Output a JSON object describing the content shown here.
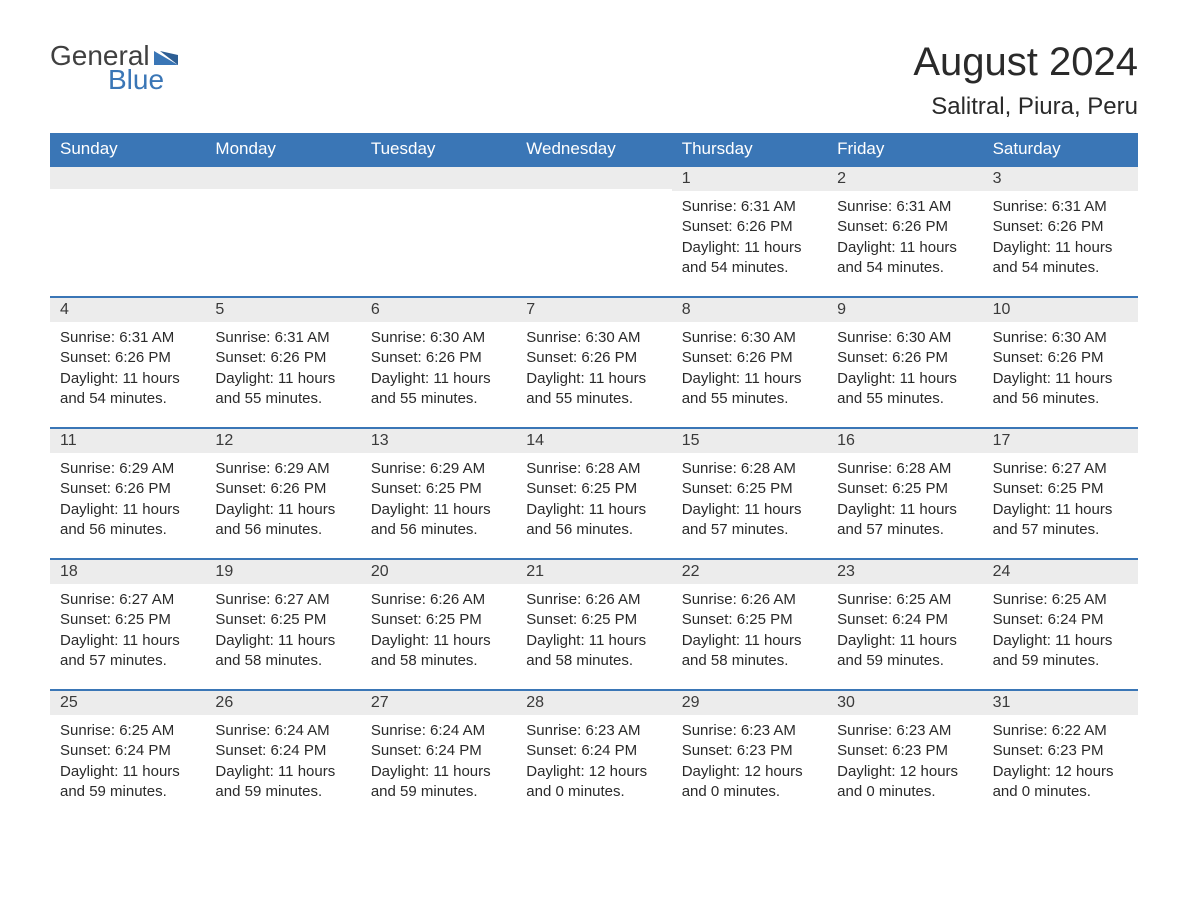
{
  "logo": {
    "text1": "General",
    "text2": "Blue",
    "accent_color": "#3a76b6"
  },
  "title": "August 2024",
  "location": "Salitral, Piura, Peru",
  "colors": {
    "header_bg": "#3a76b6",
    "header_text": "#ffffff",
    "daybar_bg": "#ececec",
    "daybar_border": "#3a76b6",
    "body_text": "#2a2a2a",
    "page_bg": "#ffffff"
  },
  "weekdays": [
    "Sunday",
    "Monday",
    "Tuesday",
    "Wednesday",
    "Thursday",
    "Friday",
    "Saturday"
  ],
  "leading_blanks": 4,
  "days": [
    {
      "n": "1",
      "sunrise": "6:31 AM",
      "sunset": "6:26 PM",
      "daylight": "11 hours and 54 minutes."
    },
    {
      "n": "2",
      "sunrise": "6:31 AM",
      "sunset": "6:26 PM",
      "daylight": "11 hours and 54 minutes."
    },
    {
      "n": "3",
      "sunrise": "6:31 AM",
      "sunset": "6:26 PM",
      "daylight": "11 hours and 54 minutes."
    },
    {
      "n": "4",
      "sunrise": "6:31 AM",
      "sunset": "6:26 PM",
      "daylight": "11 hours and 54 minutes."
    },
    {
      "n": "5",
      "sunrise": "6:31 AM",
      "sunset": "6:26 PM",
      "daylight": "11 hours and 55 minutes."
    },
    {
      "n": "6",
      "sunrise": "6:30 AM",
      "sunset": "6:26 PM",
      "daylight": "11 hours and 55 minutes."
    },
    {
      "n": "7",
      "sunrise": "6:30 AM",
      "sunset": "6:26 PM",
      "daylight": "11 hours and 55 minutes."
    },
    {
      "n": "8",
      "sunrise": "6:30 AM",
      "sunset": "6:26 PM",
      "daylight": "11 hours and 55 minutes."
    },
    {
      "n": "9",
      "sunrise": "6:30 AM",
      "sunset": "6:26 PM",
      "daylight": "11 hours and 55 minutes."
    },
    {
      "n": "10",
      "sunrise": "6:30 AM",
      "sunset": "6:26 PM",
      "daylight": "11 hours and 56 minutes."
    },
    {
      "n": "11",
      "sunrise": "6:29 AM",
      "sunset": "6:26 PM",
      "daylight": "11 hours and 56 minutes."
    },
    {
      "n": "12",
      "sunrise": "6:29 AM",
      "sunset": "6:26 PM",
      "daylight": "11 hours and 56 minutes."
    },
    {
      "n": "13",
      "sunrise": "6:29 AM",
      "sunset": "6:25 PM",
      "daylight": "11 hours and 56 minutes."
    },
    {
      "n": "14",
      "sunrise": "6:28 AM",
      "sunset": "6:25 PM",
      "daylight": "11 hours and 56 minutes."
    },
    {
      "n": "15",
      "sunrise": "6:28 AM",
      "sunset": "6:25 PM",
      "daylight": "11 hours and 57 minutes."
    },
    {
      "n": "16",
      "sunrise": "6:28 AM",
      "sunset": "6:25 PM",
      "daylight": "11 hours and 57 minutes."
    },
    {
      "n": "17",
      "sunrise": "6:27 AM",
      "sunset": "6:25 PM",
      "daylight": "11 hours and 57 minutes."
    },
    {
      "n": "18",
      "sunrise": "6:27 AM",
      "sunset": "6:25 PM",
      "daylight": "11 hours and 57 minutes."
    },
    {
      "n": "19",
      "sunrise": "6:27 AM",
      "sunset": "6:25 PM",
      "daylight": "11 hours and 58 minutes."
    },
    {
      "n": "20",
      "sunrise": "6:26 AM",
      "sunset": "6:25 PM",
      "daylight": "11 hours and 58 minutes."
    },
    {
      "n": "21",
      "sunrise": "6:26 AM",
      "sunset": "6:25 PM",
      "daylight": "11 hours and 58 minutes."
    },
    {
      "n": "22",
      "sunrise": "6:26 AM",
      "sunset": "6:25 PM",
      "daylight": "11 hours and 58 minutes."
    },
    {
      "n": "23",
      "sunrise": "6:25 AM",
      "sunset": "6:24 PM",
      "daylight": "11 hours and 59 minutes."
    },
    {
      "n": "24",
      "sunrise": "6:25 AM",
      "sunset": "6:24 PM",
      "daylight": "11 hours and 59 minutes."
    },
    {
      "n": "25",
      "sunrise": "6:25 AM",
      "sunset": "6:24 PM",
      "daylight": "11 hours and 59 minutes."
    },
    {
      "n": "26",
      "sunrise": "6:24 AM",
      "sunset": "6:24 PM",
      "daylight": "11 hours and 59 minutes."
    },
    {
      "n": "27",
      "sunrise": "6:24 AM",
      "sunset": "6:24 PM",
      "daylight": "11 hours and 59 minutes."
    },
    {
      "n": "28",
      "sunrise": "6:23 AM",
      "sunset": "6:24 PM",
      "daylight": "12 hours and 0 minutes."
    },
    {
      "n": "29",
      "sunrise": "6:23 AM",
      "sunset": "6:23 PM",
      "daylight": "12 hours and 0 minutes."
    },
    {
      "n": "30",
      "sunrise": "6:23 AM",
      "sunset": "6:23 PM",
      "daylight": "12 hours and 0 minutes."
    },
    {
      "n": "31",
      "sunrise": "6:22 AM",
      "sunset": "6:23 PM",
      "daylight": "12 hours and 0 minutes."
    }
  ],
  "labels": {
    "sunrise": "Sunrise: ",
    "sunset": "Sunset: ",
    "daylight": "Daylight: "
  }
}
